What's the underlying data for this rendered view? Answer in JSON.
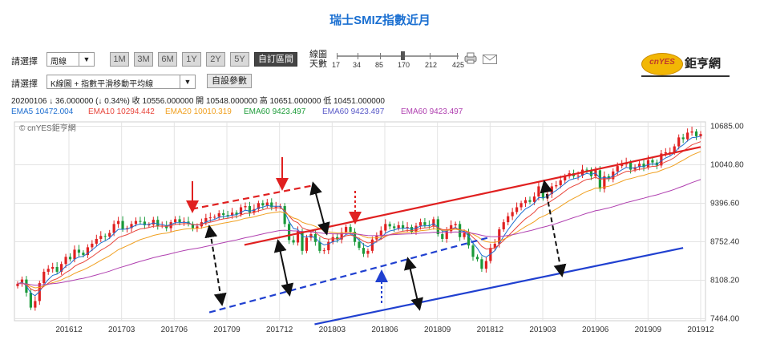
{
  "title": "瑞士SMIZ指數近月",
  "controls": {
    "select_label_1": "請選擇",
    "period_value": "周線",
    "range_buttons": [
      "1M",
      "3M",
      "6M",
      "1Y",
      "2Y",
      "5Y",
      "自訂區間"
    ],
    "active_range": "自訂區間",
    "days_label_line1": "線圖",
    "days_label_line2": "天數",
    "days_ticks": [
      "17",
      "34",
      "85",
      "170",
      "212",
      "425"
    ],
    "select_label_2": "請選擇",
    "indicator_value": "K線圖 + 指數平滑移動平均線",
    "custom_params_button": "自設參數",
    "print_icon": "printer-icon",
    "mail_icon": "envelope-icon",
    "logo_badge": "cnYES",
    "logo_text": "鉅亨網"
  },
  "info_line": "20200106  ↓ 36.000000 (↓ 0.34%)   收 10556.000000   開 10548.000000   高 10651.000000   低 10451.000000",
  "ema_legend": [
    {
      "label": "EMA5 10472.004",
      "color": "#1f6fd0"
    },
    {
      "label": "EMA10 10294.442",
      "color": "#e8463c"
    },
    {
      "label": "EMA20 10010.319",
      "color": "#f0a020"
    },
    {
      "label": "EMA60 9423.497",
      "color": "#1e9c3a"
    },
    {
      "label": "EMA60 9423.497",
      "color": "#5a5ac8"
    },
    {
      "label": "EMA60 9423.497",
      "color": "#b040b0"
    }
  ],
  "watermark": "© cnYES鉅亨網",
  "chart_data": {
    "type": "candlestick",
    "title": "瑞士SMIZ指數近月",
    "x_ticks": [
      "201612",
      "201703",
      "201706",
      "201709",
      "201712",
      "201803",
      "201806",
      "201809",
      "201812",
      "201903",
      "201906",
      "201909",
      "201912"
    ],
    "y_ticks": [
      7464.0,
      8108.2,
      8752.4,
      9396.6,
      10040.8,
      10685.0
    ],
    "ylim": [
      7430,
      10760
    ],
    "y_axis_side": "right",
    "grid": true,
    "close_series_weekly_approx": [
      8050,
      8120,
      7900,
      7650,
      7760,
      8060,
      8250,
      8300,
      8330,
      8250,
      8380,
      8500,
      8460,
      8620,
      8570,
      8530,
      8660,
      8720,
      8800,
      8850,
      8840,
      8900,
      9050,
      9100,
      8960,
      8980,
      9050,
      9100,
      9090,
      9030,
      9040,
      9120,
      9020,
      9020,
      8980,
      9080,
      9130,
      9080,
      9090,
      9050,
      8980,
      9010,
      9080,
      9150,
      9160,
      9170,
      9230,
      9200,
      9190,
      9240,
      9210,
      9330,
      9350,
      9240,
      9300,
      9400,
      9360,
      9410,
      9330,
      9340,
      9350,
      9050,
      8780,
      8740,
      8930,
      8600,
      8820,
      8880,
      8750,
      8600,
      8610,
      8750,
      8830,
      8790,
      8910,
      9000,
      8920,
      8750,
      8650,
      8550,
      8600,
      8790,
      8850,
      8940,
      9050,
      9010,
      8980,
      9030,
      8980,
      9000,
      8920,
      9020,
      9080,
      9030,
      9020,
      9130,
      8880,
      8800,
      8930,
      9030,
      9050,
      8830,
      8900,
      8690,
      8500,
      8460,
      8300,
      8430,
      8650,
      8720,
      8960,
      9080,
      9180,
      9250,
      9330,
      9400,
      9450,
      9420,
      9510,
      9680,
      9480,
      9550,
      9680,
      9700,
      9780,
      9850,
      9900,
      9850,
      9860,
      9960,
      9950,
      9850,
      9950,
      9640,
      9850,
      9800,
      9930,
      10020,
      10050,
      10080,
      9960,
      10000,
      10060,
      10000,
      10120,
      10080,
      10030,
      10230,
      10250,
      10250,
      10350,
      10500,
      10470,
      10580,
      10600,
      10520,
      10556
    ],
    "ema_series": [
      {
        "name": "EMA5",
        "color": "#1f6fd0",
        "start": 8050,
        "end": 10472.004
      },
      {
        "name": "EMA10",
        "color": "#e8463c",
        "start": 8050,
        "end": 10294.442
      },
      {
        "name": "EMA20",
        "color": "#f0a020",
        "start": 8000,
        "end": 10010.319
      },
      {
        "name": "EMA60",
        "color": "#b040b0",
        "start": 7950,
        "end": 9423.497
      }
    ],
    "trend_lines": [
      {
        "color": "#e02020",
        "style": "solid",
        "from": [
          "201710",
          8700
        ],
        "to": [
          "201912",
          10340
        ]
      },
      {
        "color": "#e02020",
        "style": "dashed",
        "from": [
          "201707",
          9300
        ],
        "to": [
          "201802",
          9700
        ]
      },
      {
        "color": "#2040d0",
        "style": "dashed",
        "from": [
          "201708",
          7570
        ],
        "to": [
          "201812",
          8830
        ]
      },
      {
        "color": "#2040d0",
        "style": "solid",
        "from": [
          "201802",
          7370
        ],
        "to": [
          "201911",
          8650
        ]
      }
    ]
  }
}
